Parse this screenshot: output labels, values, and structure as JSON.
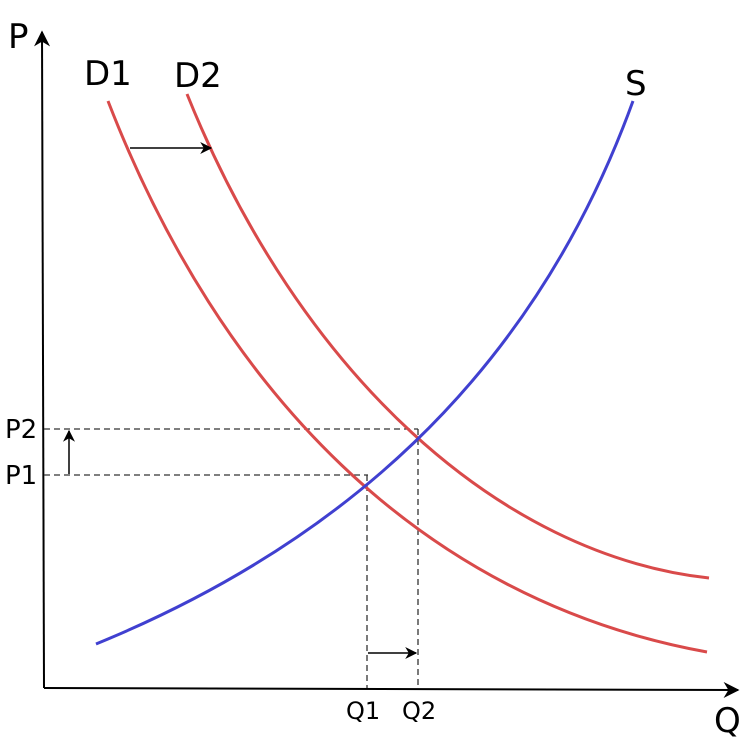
{
  "axes": {
    "x_label": "Q",
    "y_label": "P"
  },
  "curves": {
    "d1": {
      "label": "D1",
      "color": "#d94a4a"
    },
    "d2": {
      "label": "D2",
      "color": "#d94a4a"
    },
    "s": {
      "label": "S",
      "color": "#4040d0"
    }
  },
  "equilibria": {
    "p1": "P1",
    "p2": "P2",
    "q1": "Q1",
    "q2": "Q2"
  },
  "colors": {
    "axis": "#000000",
    "guide": "#333333",
    "arrow": "#000000"
  }
}
